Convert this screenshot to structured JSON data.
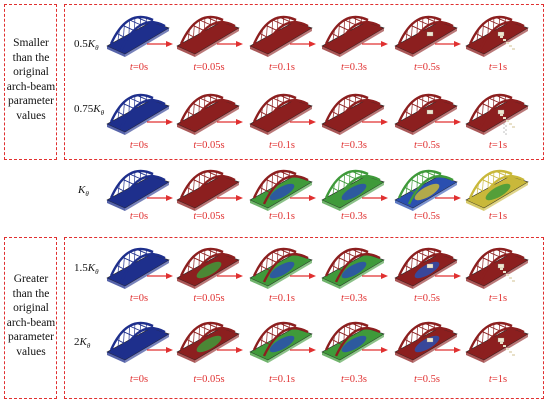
{
  "groups": {
    "smaller": {
      "label_lines": [
        "Smaller",
        "than the",
        "original",
        "arch-beam",
        "parameter",
        "values"
      ]
    },
    "greater": {
      "label_lines": [
        "Greater",
        "than the",
        "original",
        "arch-beam",
        "parameter",
        "values"
      ]
    }
  },
  "rows": [
    {
      "id": "r05",
      "coef": "0.5",
      "symbol": "K",
      "sub": "θ",
      "scheme": "red-failing"
    },
    {
      "id": "r075",
      "coef": "0.75",
      "symbol": "K",
      "sub": "θ",
      "scheme": "red-collapse"
    },
    {
      "id": "r1",
      "coef": "",
      "symbol": "K",
      "sub": "θ",
      "scheme": "rainbow"
    },
    {
      "id": "r15",
      "coef": "1.5",
      "symbol": "K",
      "sub": "θ",
      "scheme": "mixed"
    },
    {
      "id": "r2",
      "coef": "2",
      "symbol": "K",
      "sub": "θ",
      "scheme": "mixed-late"
    }
  ],
  "time_labels": [
    {
      "t": "t",
      "eq": "=0s"
    },
    {
      "t": "t",
      "eq": "=0.05s"
    },
    {
      "t": "t",
      "eq": "=0.1s"
    },
    {
      "t": "t",
      "eq": "=0.3s"
    },
    {
      "t": "t",
      "eq": "=0.5s"
    },
    {
      "t": "t",
      "eq": "=1s"
    }
  ],
  "colors": {
    "dash": "#e03030",
    "arrow": "#e03030",
    "initial": "#1e2f8c",
    "deformed": "#8c1f1f",
    "green": "#3f9a3a",
    "blue": "#2a4fb0",
    "yellow": "#c9b83a"
  }
}
